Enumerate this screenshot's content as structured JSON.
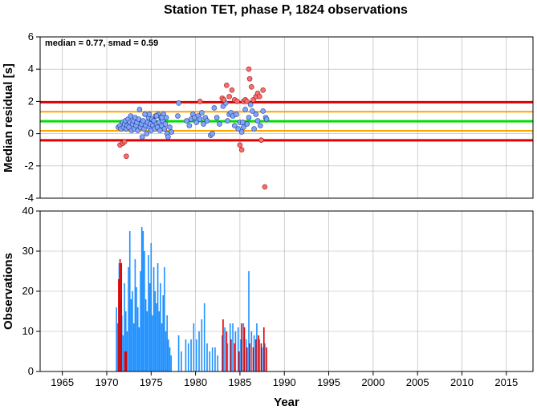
{
  "title": "Station TET, phase P, 1824 observations",
  "colors": {
    "line_median": "#00e000",
    "line_inner": "#ffa500",
    "line_outer": "#e00000",
    "point_in": "#7fa6ff",
    "point_out": "#ff6b6b",
    "bar_in": "#1e90ff",
    "bar_out": "#e00000"
  },
  "chart_data": [
    {
      "type": "scatter",
      "name": "residuals",
      "ylabel": "Median residual [s]",
      "annotation": "median = 0.77, smad = 0.59",
      "xlim": [
        1962.5,
        2018
      ],
      "ylim": [
        -4,
        6
      ],
      "xticks": [
        1965,
        1970,
        1975,
        1980,
        1985,
        1990,
        1995,
        2000,
        2005,
        2010,
        2015
      ],
      "yticks": [
        -4,
        -2,
        0,
        2,
        4,
        6
      ],
      "grid": true,
      "hlines": [
        {
          "y": 0.77,
          "role": "median"
        },
        {
          "y": 0.18,
          "role": "inner"
        },
        {
          "y": 1.36,
          "role": "inner"
        },
        {
          "y": -0.41,
          "role": "outer"
        },
        {
          "y": 1.95,
          "role": "outer"
        }
      ],
      "points_in": [
        [
          1971.3,
          0.4
        ],
        [
          1971.5,
          0.5
        ],
        [
          1971.6,
          0.3
        ],
        [
          1971.8,
          0.7
        ],
        [
          1971.9,
          0.4
        ],
        [
          1972.0,
          0.6
        ],
        [
          1972.1,
          0.8
        ],
        [
          1972.2,
          0.3
        ],
        [
          1972.3,
          0.5
        ],
        [
          1972.4,
          0.9
        ],
        [
          1972.5,
          0.4
        ],
        [
          1972.6,
          0.7
        ],
        [
          1972.7,
          1.1
        ],
        [
          1972.8,
          0.2
        ],
        [
          1972.9,
          0.6
        ],
        [
          1973.0,
          0.8
        ],
        [
          1973.1,
          0.3
        ],
        [
          1973.2,
          1.0
        ],
        [
          1973.3,
          0.5
        ],
        [
          1973.4,
          0.7
        ],
        [
          1973.5,
          0.2
        ],
        [
          1973.6,
          0.9
        ],
        [
          1973.7,
          1.5
        ],
        [
          1973.8,
          0.4
        ],
        [
          1973.9,
          0.6
        ],
        [
          1974.0,
          -0.2
        ],
        [
          1974.1,
          0.8
        ],
        [
          1974.2,
          0.3
        ],
        [
          1974.3,
          1.2
        ],
        [
          1974.4,
          0.5
        ],
        [
          1974.5,
          0.0
        ],
        [
          1974.6,
          0.7
        ],
        [
          1974.7,
          1.0
        ],
        [
          1974.8,
          0.4
        ],
        [
          1974.9,
          0.6
        ],
        [
          1975.0,
          0.2
        ],
        [
          1975.1,
          0.9
        ],
        [
          1975.2,
          0.5
        ],
        [
          1975.3,
          0.8
        ],
        [
          1975.4,
          0.3
        ],
        [
          1975.5,
          1.1
        ],
        [
          1975.6,
          0.6
        ],
        [
          1975.7,
          0.4
        ],
        [
          1975.8,
          1.2
        ],
        [
          1975.9,
          0.7
        ],
        [
          1976.0,
          0.2
        ],
        [
          1976.1,
          1.0
        ],
        [
          1976.2,
          0.5
        ],
        [
          1976.3,
          0.8
        ],
        [
          1976.4,
          1.2
        ],
        [
          1976.5,
          0.3
        ],
        [
          1976.6,
          0.6
        ],
        [
          1976.7,
          1.0
        ],
        [
          1976.8,
          0.0
        ],
        [
          1976.9,
          -0.2
        ],
        [
          1977.1,
          0.4
        ],
        [
          1977.3,
          0.1
        ],
        [
          1974.8,
          1.2
        ],
        [
          1975.6,
          1.1
        ],
        [
          1976.2,
          1.0
        ],
        [
          1978.0,
          1.1
        ],
        [
          1978.1,
          1.9
        ],
        [
          1979.0,
          0.8
        ],
        [
          1979.3,
          0.5
        ],
        [
          1979.5,
          0.9
        ],
        [
          1979.7,
          1.2
        ],
        [
          1979.9,
          1.0
        ],
        [
          1980.1,
          0.7
        ],
        [
          1980.3,
          1.1
        ],
        [
          1980.5,
          0.9
        ],
        [
          1980.7,
          1.3
        ],
        [
          1980.9,
          0.6
        ],
        [
          1981.1,
          1.0
        ],
        [
          1981.3,
          0.8
        ],
        [
          1981.7,
          -0.1
        ],
        [
          1981.9,
          0.0
        ],
        [
          1982.1,
          1.6
        ],
        [
          1982.4,
          1.0
        ],
        [
          1982.7,
          0.6
        ],
        [
          1983.1,
          1.7
        ],
        [
          1983.4,
          1.9
        ],
        [
          1983.6,
          0.8
        ],
        [
          1983.8,
          1.2
        ],
        [
          1984.0,
          1.3
        ],
        [
          1984.2,
          1.1
        ],
        [
          1984.4,
          0.5
        ],
        [
          1984.6,
          1.2
        ],
        [
          1984.8,
          0.3
        ],
        [
          1985.0,
          0.7
        ],
        [
          1985.2,
          0.1
        ],
        [
          1985.4,
          0.4
        ],
        [
          1985.6,
          1.5
        ],
        [
          1985.8,
          0.6
        ],
        [
          1986.0,
          1.0
        ],
        [
          1986.2,
          1.8
        ],
        [
          1986.4,
          1.4
        ],
        [
          1986.6,
          0.3
        ],
        [
          1986.8,
          1.2
        ],
        [
          1987.0,
          0.8
        ],
        [
          1987.3,
          0.5
        ],
        [
          1987.6,
          1.4
        ],
        [
          1987.9,
          1.0
        ],
        [
          1988.0,
          0.9
        ],
        [
          1985.3,
          0.7
        ]
      ],
      "points_out": [
        [
          1971.5,
          -0.7
        ],
        [
          1971.8,
          -0.6
        ],
        [
          1972.0,
          -0.5
        ],
        [
          1972.2,
          -1.4
        ],
        [
          1980.5,
          2.0
        ],
        [
          1983.0,
          2.2
        ],
        [
          1983.2,
          2.1
        ],
        [
          1983.5,
          3.0
        ],
        [
          1983.8,
          2.3
        ],
        [
          1984.1,
          2.7
        ],
        [
          1984.4,
          2.1
        ],
        [
          1984.7,
          2.0
        ],
        [
          1985.0,
          -0.7
        ],
        [
          1985.2,
          -1.0
        ],
        [
          1985.4,
          2.0
        ],
        [
          1985.6,
          2.1
        ],
        [
          1985.8,
          2.0
        ],
        [
          1986.0,
          4.0
        ],
        [
          1986.1,
          3.4
        ],
        [
          1986.3,
          2.9
        ],
        [
          1986.5,
          2.1
        ],
        [
          1986.8,
          2.3
        ],
        [
          1987.0,
          2.5
        ],
        [
          1987.2,
          2.3
        ],
        [
          1987.4,
          -0.4
        ],
        [
          1987.6,
          2.7
        ],
        [
          1987.8,
          -3.3
        ]
      ]
    },
    {
      "type": "bar",
      "name": "observations",
      "ylabel": "Observations",
      "xlabel": "Year",
      "xlim": [
        1962.5,
        2018
      ],
      "ylim": [
        0,
        40
      ],
      "xticks": [
        1965,
        1970,
        1975,
        1980,
        1985,
        1990,
        1995,
        2000,
        2005,
        2010,
        2015
      ],
      "yticks": [
        0,
        10,
        20,
        30,
        40
      ],
      "grid": true,
      "bars_in": [
        [
          1971.1,
          16
        ],
        [
          1971.25,
          12
        ],
        [
          1971.4,
          27
        ],
        [
          1971.55,
          18
        ],
        [
          1971.7,
          14
        ],
        [
          1971.85,
          9
        ],
        [
          1972.0,
          22
        ],
        [
          1972.15,
          15
        ],
        [
          1972.3,
          10
        ],
        [
          1972.45,
          26
        ],
        [
          1972.6,
          35
        ],
        [
          1972.75,
          18
        ],
        [
          1972.9,
          20
        ],
        [
          1973.05,
          12
        ],
        [
          1973.2,
          28
        ],
        [
          1973.35,
          21
        ],
        [
          1973.5,
          16
        ],
        [
          1973.65,
          11
        ],
        [
          1973.8,
          25
        ],
        [
          1973.95,
          36
        ],
        [
          1974.1,
          35
        ],
        [
          1974.25,
          30
        ],
        [
          1974.4,
          18
        ],
        [
          1974.55,
          15
        ],
        [
          1974.7,
          29
        ],
        [
          1974.85,
          22
        ],
        [
          1975.0,
          32
        ],
        [
          1975.15,
          14
        ],
        [
          1975.3,
          26
        ],
        [
          1975.45,
          20
        ],
        [
          1975.6,
          17
        ],
        [
          1975.75,
          27
        ],
        [
          1975.9,
          15
        ],
        [
          1976.05,
          22
        ],
        [
          1976.2,
          12
        ],
        [
          1976.35,
          19
        ],
        [
          1976.5,
          26
        ],
        [
          1976.65,
          10
        ],
        [
          1976.8,
          14
        ],
        [
          1976.95,
          8
        ],
        [
          1977.1,
          6
        ],
        [
          1977.25,
          4
        ],
        [
          1978.1,
          9
        ],
        [
          1978.4,
          5
        ],
        [
          1978.9,
          8
        ],
        [
          1979.2,
          7
        ],
        [
          1979.5,
          8
        ],
        [
          1979.8,
          12
        ],
        [
          1980.1,
          8
        ],
        [
          1980.4,
          10
        ],
        [
          1980.7,
          13
        ],
        [
          1981.0,
          17
        ],
        [
          1981.3,
          7
        ],
        [
          1981.6,
          5
        ],
        [
          1981.9,
          6
        ],
        [
          1982.2,
          6
        ],
        [
          1982.5,
          4
        ],
        [
          1983.0,
          9
        ],
        [
          1983.3,
          11
        ],
        [
          1983.6,
          7
        ],
        [
          1983.9,
          12
        ],
        [
          1984.2,
          12
        ],
        [
          1984.5,
          10
        ],
        [
          1984.8,
          11
        ],
        [
          1985.1,
          8
        ],
        [
          1985.4,
          12
        ],
        [
          1985.7,
          8
        ],
        [
          1986.0,
          25
        ],
        [
          1986.3,
          10
        ],
        [
          1986.6,
          9
        ],
        [
          1986.9,
          12
        ],
        [
          1987.2,
          8
        ],
        [
          1987.5,
          6
        ],
        [
          1987.8,
          7
        ]
      ],
      "bars_out": [
        [
          1971.35,
          23
        ],
        [
          1971.5,
          28
        ],
        [
          1971.65,
          27
        ],
        [
          1972.05,
          5
        ],
        [
          1972.2,
          5
        ],
        [
          1983.1,
          13
        ],
        [
          1983.5,
          10
        ],
        [
          1984.0,
          8
        ],
        [
          1984.4,
          7
        ],
        [
          1984.9,
          5
        ],
        [
          1985.2,
          12
        ],
        [
          1985.5,
          11
        ],
        [
          1985.8,
          6
        ],
        [
          1986.1,
          7
        ],
        [
          1986.5,
          6
        ],
        [
          1986.8,
          8
        ],
        [
          1987.1,
          9
        ],
        [
          1987.4,
          7
        ],
        [
          1987.7,
          11
        ],
        [
          1988.0,
          6
        ]
      ]
    }
  ]
}
